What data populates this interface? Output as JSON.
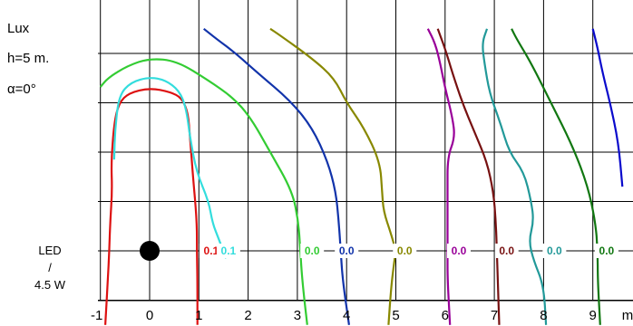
{
  "chart_data": {
    "type": "line",
    "title_lines": [
      "Lux",
      "h=5 m.",
      "α=0°"
    ],
    "xlabel": "m",
    "x_ticks": [
      "-1",
      "0",
      "1",
      "2",
      "3",
      "4",
      "5",
      "6",
      "7",
      "8",
      "9"
    ],
    "xlim": [
      -1.0,
      9.6
    ],
    "ylim": [
      -1.5,
      4.5
    ],
    "grid": true,
    "lamp": {
      "label_lines": [
        "LED",
        "/",
        "4.5 W"
      ],
      "x": 0,
      "y": 0,
      "color": "#000000"
    },
    "series": [
      {
        "label": "0.1",
        "color": "#dd1111",
        "label_x": 1.25,
        "points": [
          [
            0.97,
            -1.5
          ],
          [
            0.97,
            -0.6
          ],
          [
            0.96,
            0
          ],
          [
            0.96,
            0.6
          ],
          [
            0.88,
            1.5
          ],
          [
            0.82,
            2.3
          ],
          [
            0.78,
            2.8
          ],
          [
            0.65,
            3.1
          ],
          [
            0.42,
            3.22
          ],
          [
            0,
            3.3
          ],
          [
            -0.42,
            3.2
          ],
          [
            -0.62,
            3.0
          ],
          [
            -0.72,
            2.6
          ],
          [
            -0.78,
            1.8
          ],
          [
            -0.76,
            1.2
          ],
          [
            -0.8,
            0.6
          ],
          [
            -0.82,
            0
          ],
          [
            -0.85,
            -0.6
          ],
          [
            -0.9,
            -1.5
          ]
        ]
      },
      {
        "label": "0.1",
        "color": "#33dddd",
        "label_x": 1.6,
        "points": [
          [
            1.55,
            -0.15
          ],
          [
            1.4,
            0.25
          ],
          [
            1.28,
            0.55
          ],
          [
            1.2,
            1.0
          ],
          [
            0.95,
            1.6
          ],
          [
            0.82,
            2.3
          ],
          [
            0.74,
            2.9
          ],
          [
            0.6,
            3.25
          ],
          [
            0.32,
            3.46
          ],
          [
            0,
            3.52
          ],
          [
            -0.38,
            3.42
          ],
          [
            -0.62,
            3.15
          ],
          [
            -0.7,
            2.5
          ],
          [
            -0.72,
            1.85
          ]
        ]
      },
      {
        "label": "0.0",
        "color": "#33cc33",
        "label_x": 3.3,
        "points": [
          [
            3.2,
            -1.5
          ],
          [
            3.1,
            -0.6
          ],
          [
            3.06,
            0
          ],
          [
            3.02,
            0.6
          ],
          [
            2.9,
            1.2
          ],
          [
            2.45,
            2.0
          ],
          [
            2.05,
            2.7
          ],
          [
            1.7,
            3.1
          ],
          [
            1.2,
            3.45
          ],
          [
            0.55,
            3.85
          ],
          [
            0,
            3.9
          ],
          [
            -0.45,
            3.75
          ],
          [
            -0.85,
            3.5
          ],
          [
            -1.0,
            3.32
          ]
        ]
      },
      {
        "label": "0.0",
        "color": "#1133aa",
        "label_x": 4.0,
        "points": [
          [
            4.05,
            -1.5
          ],
          [
            3.92,
            -0.6
          ],
          [
            3.88,
            0
          ],
          [
            3.84,
            0.6
          ],
          [
            3.78,
            1.2
          ],
          [
            3.62,
            1.8
          ],
          [
            3.3,
            2.5
          ],
          [
            2.85,
            3.05
          ],
          [
            2.2,
            3.6
          ],
          [
            1.75,
            4.0
          ],
          [
            1.35,
            4.3
          ],
          [
            1.1,
            4.5
          ]
        ]
      },
      {
        "label": "0.0",
        "color": "#888800",
        "label_x": 5.18,
        "points": [
          [
            4.85,
            -1.5
          ],
          [
            4.9,
            -0.8
          ],
          [
            4.95,
            -0.35
          ],
          [
            5.0,
            0
          ],
          [
            4.9,
            0.35
          ],
          [
            4.75,
            0.8
          ],
          [
            4.72,
            1.2
          ],
          [
            4.68,
            1.8
          ],
          [
            4.35,
            2.5
          ],
          [
            4.0,
            3.0
          ],
          [
            3.75,
            3.5
          ],
          [
            3.3,
            3.9
          ],
          [
            2.6,
            4.4
          ],
          [
            2.45,
            4.5
          ]
        ]
      },
      {
        "label": "0.0",
        "color": "#990099",
        "label_x": 6.28,
        "points": [
          [
            6.1,
            -1.5
          ],
          [
            6.05,
            -0.6
          ],
          [
            6.05,
            0
          ],
          [
            6.05,
            0.6
          ],
          [
            6.05,
            1.2
          ],
          [
            6.05,
            1.9
          ],
          [
            6.2,
            2.3
          ],
          [
            6.15,
            2.7
          ],
          [
            6.0,
            3.3
          ],
          [
            5.9,
            3.8
          ],
          [
            5.8,
            4.2
          ],
          [
            5.65,
            4.5
          ]
        ]
      },
      {
        "label": "0.0",
        "color": "#771111",
        "label_x": 7.25,
        "points": [
          [
            7.1,
            -1.5
          ],
          [
            7.07,
            -0.6
          ],
          [
            7.05,
            0
          ],
          [
            7.03,
            0.6
          ],
          [
            6.98,
            1.2
          ],
          [
            6.85,
            1.8
          ],
          [
            6.6,
            2.4
          ],
          [
            6.35,
            3.0
          ],
          [
            6.15,
            3.6
          ],
          [
            6.0,
            4.1
          ],
          [
            5.85,
            4.5
          ]
        ]
      },
      {
        "label": "0.0",
        "color": "#229999",
        "label_x": 8.22,
        "points": [
          [
            8.05,
            -1.5
          ],
          [
            8.0,
            -0.7
          ],
          [
            7.8,
            -0.2
          ],
          [
            7.7,
            0.2
          ],
          [
            7.8,
            0.6
          ],
          [
            7.75,
            1.0
          ],
          [
            7.6,
            1.6
          ],
          [
            7.3,
            2.0
          ],
          [
            7.12,
            2.6
          ],
          [
            6.9,
            3.2
          ],
          [
            6.8,
            3.8
          ],
          [
            6.75,
            4.2
          ],
          [
            6.85,
            4.5
          ]
        ]
      },
      {
        "label": "0.0",
        "color": "#117711",
        "label_x": 9.28,
        "points": [
          [
            9.15,
            -1.5
          ],
          [
            9.1,
            -0.6
          ],
          [
            9.1,
            0
          ],
          [
            9.05,
            0.6
          ],
          [
            8.9,
            1.3
          ],
          [
            8.6,
            2.1
          ],
          [
            8.15,
            3.0
          ],
          [
            7.75,
            3.8
          ],
          [
            7.45,
            4.3
          ],
          [
            7.35,
            4.5
          ]
        ]
      },
      {
        "label": "",
        "color": "#0a0acc",
        "label_x": null,
        "points": [
          [
            9.6,
            1.3
          ],
          [
            9.52,
            2.2
          ],
          [
            9.35,
            3.0
          ],
          [
            9.2,
            3.6
          ],
          [
            9.1,
            4.1
          ],
          [
            9.0,
            4.5
          ]
        ]
      }
    ]
  }
}
